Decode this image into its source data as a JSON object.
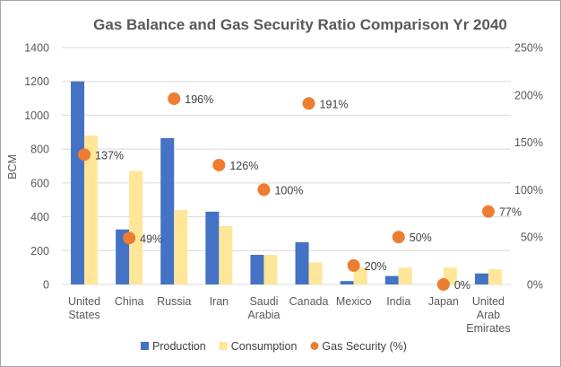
{
  "chart_data": {
    "type": "bar",
    "title": "Gas Balance and Gas Security Ratio Comparison Yr 2040",
    "ylabel": "BCM",
    "ylim": [
      0,
      1400
    ],
    "y_ticks": [
      "0",
      "200",
      "400",
      "600",
      "800",
      "1000",
      "1200",
      "1400"
    ],
    "y2lim": [
      0,
      250
    ],
    "y2_ticks": [
      "0%",
      "50%",
      "100%",
      "150%",
      "200%",
      "250%"
    ],
    "grid": true,
    "legend_position": "bottom",
    "categories": [
      [
        "United",
        "States"
      ],
      [
        "China"
      ],
      [
        "Russia"
      ],
      [
        "Iran"
      ],
      [
        "Saudi",
        "Arabia"
      ],
      [
        "Canada"
      ],
      [
        "Mexico"
      ],
      [
        "India"
      ],
      [
        "Japan"
      ],
      [
        "United",
        "Arab",
        "Emirates"
      ]
    ],
    "series": [
      {
        "name": "Production",
        "kind": "bar",
        "axis": "left",
        "color": "#4472c4",
        "values": [
          1200,
          325,
          865,
          430,
          175,
          250,
          20,
          50,
          0,
          65
        ]
      },
      {
        "name": "Consumption",
        "kind": "bar",
        "axis": "left",
        "color": "#ffe699",
        "values": [
          880,
          670,
          440,
          345,
          175,
          130,
          100,
          100,
          100,
          90
        ]
      },
      {
        "name": "Gas Security (%)",
        "kind": "scatter",
        "axis": "right",
        "color": "#ed7d31",
        "values": [
          137,
          49,
          196,
          126,
          100,
          191,
          20,
          50,
          0,
          77
        ],
        "labels": [
          "137%",
          "49%",
          "196%",
          "126%",
          "100%",
          "191%",
          "20%",
          "50%",
          "0%",
          "77%"
        ]
      }
    ]
  }
}
